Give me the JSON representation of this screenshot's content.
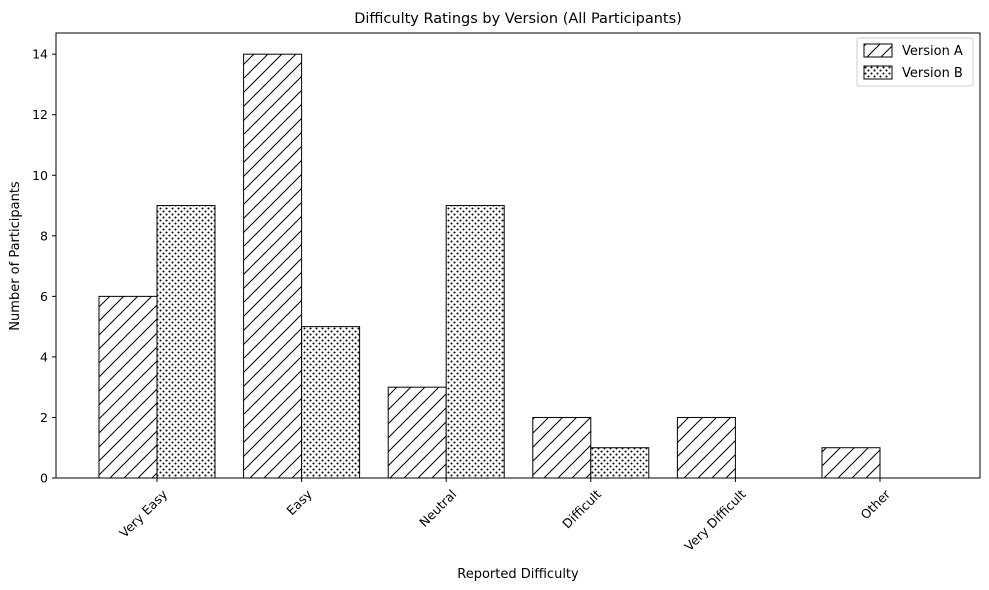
{
  "chart_data": {
    "type": "bar",
    "title": "Difficulty Ratings by Version (All Participants)",
    "xlabel": "Reported Difficulty",
    "ylabel": "Number of Participants",
    "categories": [
      "Very Easy",
      "Easy",
      "Neutral",
      "Difficult",
      "Very Difficult",
      "Other"
    ],
    "series": [
      {
        "name": "Version A",
        "values": [
          6,
          14,
          3,
          2,
          2,
          1
        ],
        "pattern": "diagonal-hatch"
      },
      {
        "name": "Version B",
        "values": [
          9,
          5,
          9,
          1,
          0,
          0
        ],
        "pattern": "dots"
      }
    ],
    "ylim": [
      0,
      14.7
    ],
    "yticks": [
      "0",
      "2",
      "4",
      "6",
      "8",
      "10",
      "12",
      "14"
    ],
    "grid": false,
    "legend_position": "top-right",
    "colors": {
      "bar_fill": "#ffffff",
      "edge": "#000000"
    }
  }
}
